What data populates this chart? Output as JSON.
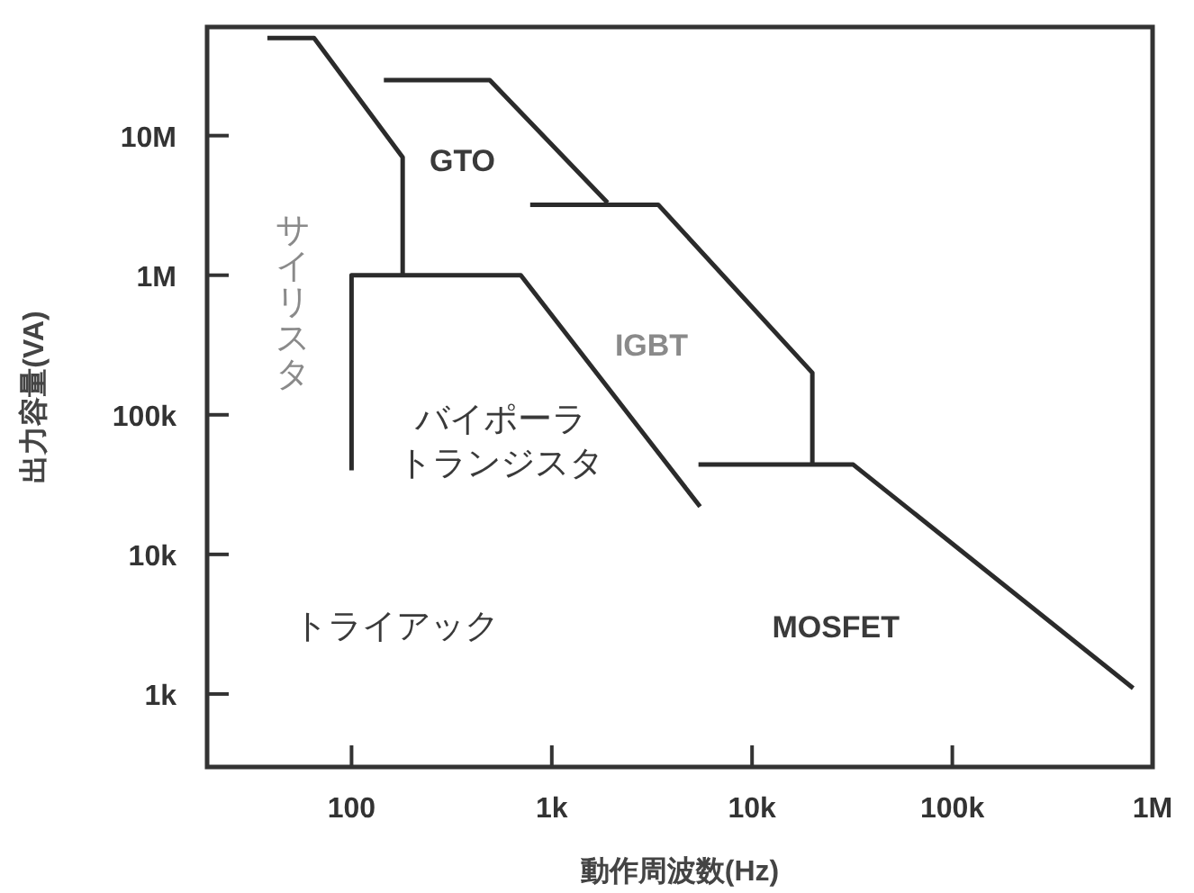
{
  "chart_data": {
    "type": "line",
    "xlabel": "動作周波数(Hz)",
    "ylabel": "出力容量(VA)",
    "log": "xy",
    "grid": false,
    "marker": "none",
    "line_style": "solid",
    "xlim": [
      19,
      1000000
    ],
    "ylim": [
      300,
      60000000
    ],
    "xticks": [
      {
        "value": 100,
        "label": "100"
      },
      {
        "value": 1000,
        "label": "1k"
      },
      {
        "value": 10000,
        "label": "10k"
      },
      {
        "value": 100000,
        "label": "100k"
      },
      {
        "value": 1000000,
        "label": "1M"
      }
    ],
    "yticks": [
      {
        "value": 1000,
        "label": "1k"
      },
      {
        "value": 10000,
        "label": "10k"
      },
      {
        "value": 100000,
        "label": "100k"
      },
      {
        "value": 1000000,
        "label": "1M"
      },
      {
        "value": 10000000,
        "label": "10M"
      }
    ],
    "series": [
      {
        "color": "#2b2b2b",
        "x": [
          38,
          65,
          180,
          180
        ],
        "values": [
          50000000,
          50000000,
          7000000,
          1000000
        ]
      },
      {
        "color": "#2b2b2b",
        "x": [
          100,
          100,
          700,
          5500
        ],
        "values": [
          40000,
          1000000,
          1000000,
          22000
        ]
      },
      {
        "color": "#2b2b2b",
        "x": [
          145,
          490,
          1900
        ],
        "values": [
          25000000,
          25000000,
          3300000
        ]
      },
      {
        "color": "#2b2b2b",
        "x": [
          780,
          3400,
          20000,
          20000
        ],
        "values": [
          3200000,
          3200000,
          200000,
          44000
        ]
      },
      {
        "color": "#2b2b2b",
        "x": [
          5400,
          32000,
          800000
        ],
        "values": [
          44000,
          44000,
          1100
        ]
      }
    ],
    "annotations": [
      "サイリスタ",
      "GTO",
      "IGBT",
      "バイポーラ",
      "トランジスタ",
      "トライアック",
      "MOSFET"
    ]
  }
}
